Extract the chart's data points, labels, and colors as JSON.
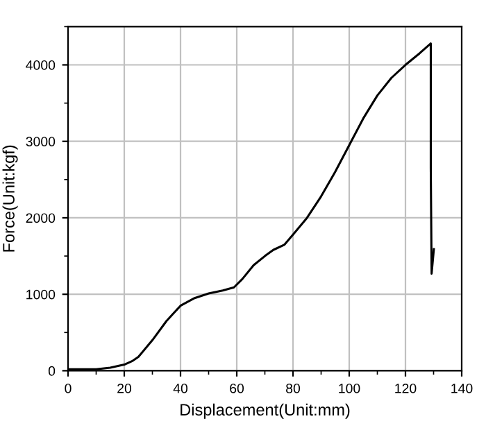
{
  "chart_data": {
    "type": "line",
    "xlabel": "Displacement(Unit:mm)",
    "ylabel": "Force(Unit:kgf)",
    "xlim": [
      0,
      140
    ],
    "ylim": [
      0,
      4500
    ],
    "xticks": [
      0,
      20,
      40,
      60,
      80,
      100,
      120,
      140
    ],
    "yticks": [
      0,
      1000,
      2000,
      3000,
      4000
    ],
    "grid": true,
    "marker": "none",
    "line_style": "solid",
    "series": [
      {
        "color": "#000000",
        "x": [
          0,
          10,
          15,
          20,
          23,
          25,
          30,
          35,
          40,
          45,
          50,
          55,
          59,
          62,
          66,
          70,
          73,
          77,
          80,
          85,
          90,
          95,
          100,
          105,
          110,
          115,
          120,
          125,
          129,
          129,
          129.3,
          130.1
        ],
        "values": [
          20,
          20,
          40,
          80,
          130,
          180,
          400,
          650,
          850,
          950,
          1010,
          1050,
          1090,
          1200,
          1380,
          1500,
          1580,
          1650,
          1780,
          2000,
          2280,
          2600,
          2950,
          3300,
          3600,
          3830,
          4000,
          4150,
          4280,
          2650,
          1270,
          1590
        ]
      }
    ]
  }
}
